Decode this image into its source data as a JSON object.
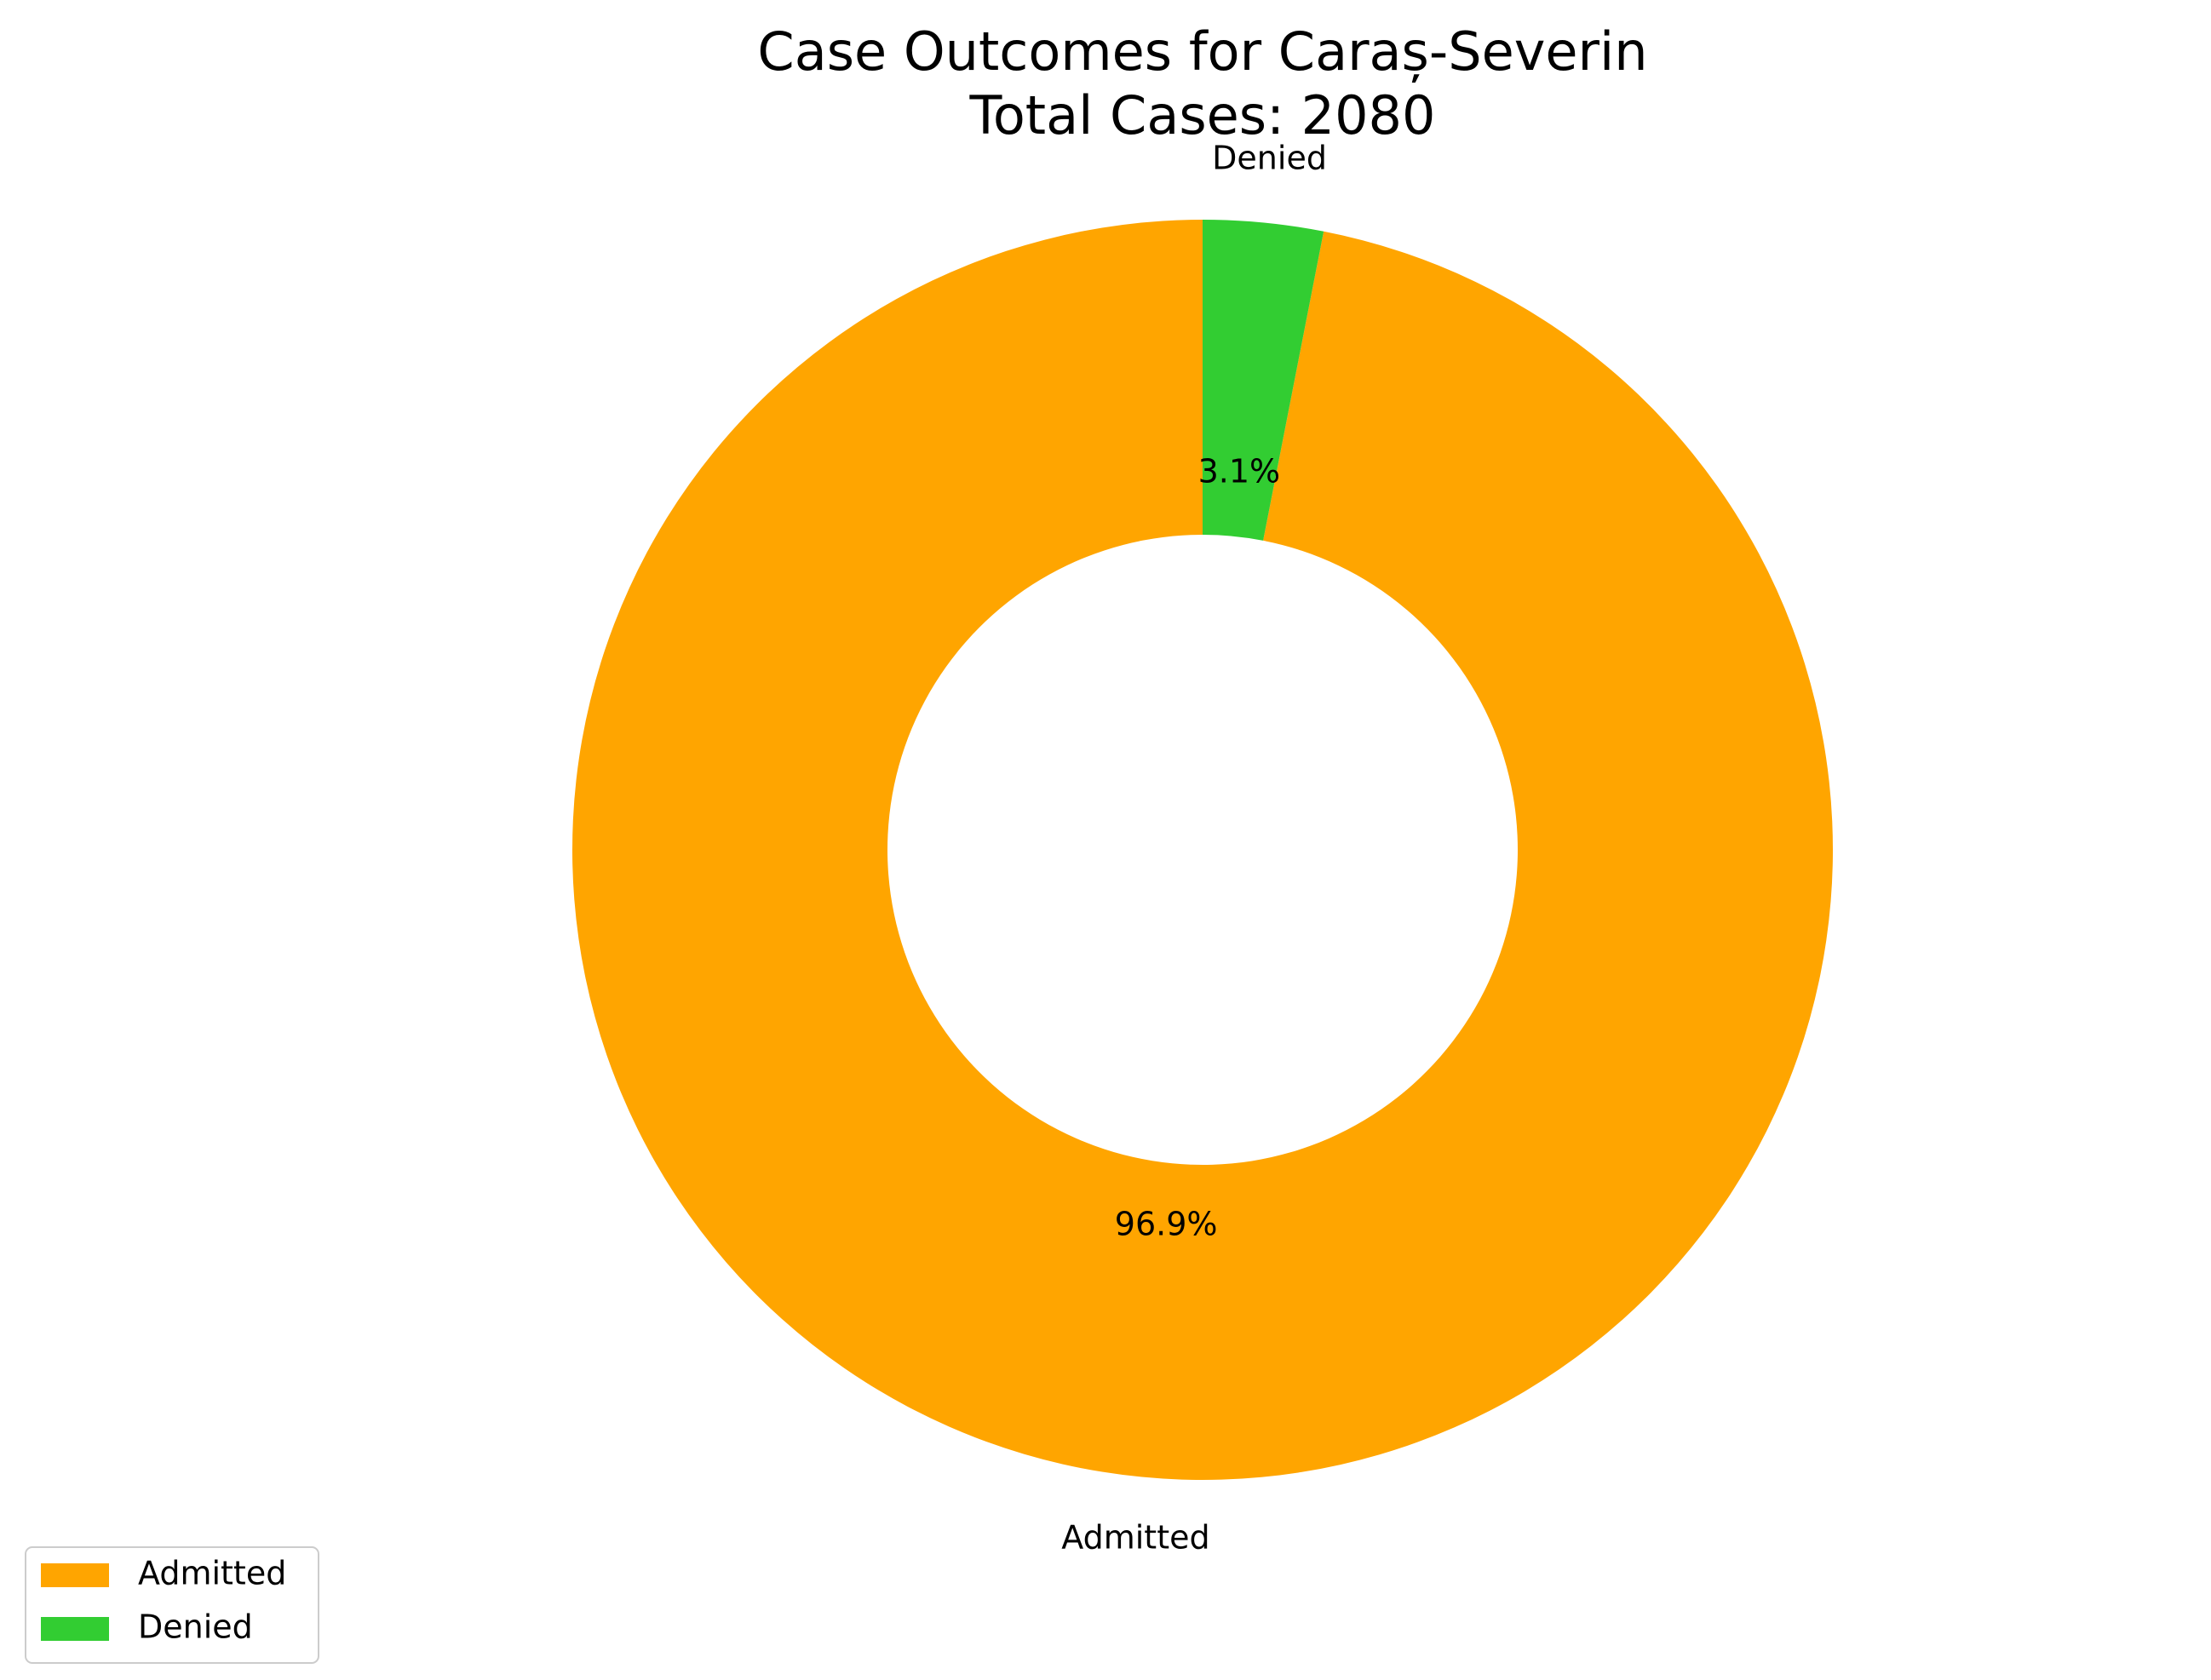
{
  "chart_data": {
    "type": "pie",
    "variant": "donut",
    "title_lines": [
      "Case Outcomes for Caraș-Severin",
      "Total Cases: 2080"
    ],
    "total_cases": 2080,
    "start_angle_deg": 90,
    "direction": "counterclockwise",
    "slices": [
      {
        "label": "Admitted",
        "value": 2016,
        "percent_label": "96.9%",
        "color": "#FFA500"
      },
      {
        "label": "Denied",
        "value": 64,
        "percent_label": "3.1%",
        "color": "#32CD32"
      }
    ],
    "legend": {
      "position": "lower-left",
      "entries": [
        {
          "label": "Admitted",
          "color": "#FFA500"
        },
        {
          "label": "Denied",
          "color": "#32CD32"
        }
      ]
    }
  }
}
